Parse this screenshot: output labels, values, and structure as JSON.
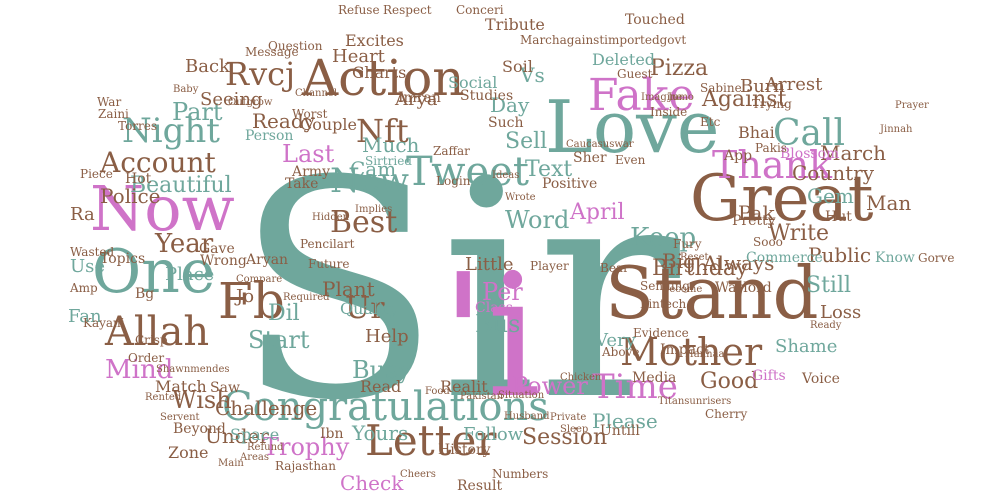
{
  "palette": {
    "teal": "#6fa79c",
    "brown": "#8a5e45",
    "pink": "#cf73c8",
    "sage": "#9cbfb5",
    "background": "#ffffff"
  },
  "words": [
    {
      "text": "Sir",
      "color": "teal"
    },
    {
      "text": "'i",
      "color": "pink"
    },
    {
      "text": "Love",
      "color": "teal"
    },
    {
      "text": "Great",
      "color": "brown"
    },
    {
      "text": "Stand",
      "color": "brown"
    },
    {
      "text": "Congratulations",
      "color": "teal"
    },
    {
      "text": "Now",
      "color": "pink"
    },
    {
      "text": "One",
      "color": "teal"
    },
    {
      "text": "Action",
      "color": "brown"
    },
    {
      "text": "Letter",
      "color": "brown"
    },
    {
      "text": "Fb",
      "color": "brown"
    },
    {
      "text": "Allah",
      "color": "brown"
    },
    {
      "text": "Mother",
      "color": "brown"
    },
    {
      "text": "Fake",
      "color": "pink"
    },
    {
      "text": "Tweet",
      "color": "teal"
    },
    {
      "text": "Thank",
      "color": "pink"
    },
    {
      "text": "Call",
      "color": "teal"
    },
    {
      "text": "Time",
      "color": "pink"
    },
    {
      "text": "Night",
      "color": "teal"
    },
    {
      "text": "Account",
      "color": "brown"
    },
    {
      "text": "Mind",
      "color": "pink"
    },
    {
      "text": "Nft",
      "color": "brown"
    },
    {
      "text": "New",
      "color": "teal"
    },
    {
      "text": "Rvcj",
      "color": "brown"
    },
    {
      "text": "Best",
      "color": "brown"
    },
    {
      "text": "Ur",
      "color": "brown"
    },
    {
      "text": "Busy",
      "color": "teal"
    },
    {
      "text": "Trophy",
      "color": "pink"
    },
    {
      "text": "Wish",
      "color": "brown"
    },
    {
      "text": "Part",
      "color": "teal"
    },
    {
      "text": "Year",
      "color": "brown"
    },
    {
      "text": "Beautiful",
      "color": "teal"
    },
    {
      "text": "Keep",
      "color": "teal"
    },
    {
      "text": "Birthday",
      "color": "brown"
    },
    {
      "text": "Power",
      "color": "pink"
    },
    {
      "text": "Against",
      "color": "brown"
    },
    {
      "text": "Pizza",
      "color": "brown"
    },
    {
      "text": "Country",
      "color": "brown"
    },
    {
      "text": "Public",
      "color": "brown"
    },
    {
      "text": "Word",
      "color": "teal"
    },
    {
      "text": "Bus",
      "color": "teal"
    },
    {
      "text": "Per",
      "color": "pink"
    },
    {
      "text": "Sell",
      "color": "teal"
    },
    {
      "text": "Last",
      "color": "pink"
    },
    {
      "text": "Police",
      "color": "brown"
    },
    {
      "text": "Ready",
      "color": "brown"
    },
    {
      "text": "Heart",
      "color": "brown"
    },
    {
      "text": "Start",
      "color": "teal"
    },
    {
      "text": "Session",
      "color": "brown"
    },
    {
      "text": "Please",
      "color": "teal"
    },
    {
      "text": "Check",
      "color": "pink"
    },
    {
      "text": "Yours",
      "color": "teal"
    },
    {
      "text": "Under",
      "color": "brown"
    },
    {
      "text": "March",
      "color": "brown"
    },
    {
      "text": "April",
      "color": "pink"
    },
    {
      "text": "Still",
      "color": "teal"
    },
    {
      "text": "Loss",
      "color": "brown"
    },
    {
      "text": "Gem",
      "color": "teal"
    },
    {
      "text": "Man",
      "color": "brown"
    },
    {
      "text": "Good",
      "color": "brown"
    },
    {
      "text": "Always",
      "color": "brown"
    },
    {
      "text": "Text",
      "color": "teal"
    },
    {
      "text": "Much",
      "color": "teal"
    },
    {
      "text": "Cam",
      "color": "teal"
    },
    {
      "text": "Day",
      "color": "teal"
    },
    {
      "text": "Vs",
      "color": "teal"
    },
    {
      "text": "Pak",
      "color": "brown"
    },
    {
      "text": "Big",
      "color": "brown"
    },
    {
      "text": "Write",
      "color": "brown"
    },
    {
      "text": "Little",
      "color": "brown"
    },
    {
      "text": "Very",
      "color": "teal"
    },
    {
      "text": "Follow",
      "color": "teal"
    },
    {
      "text": "Help",
      "color": "brown"
    },
    {
      "text": "Class",
      "color": "pink"
    },
    {
      "text": "Realit",
      "color": "brown"
    },
    {
      "text": "Dil",
      "color": "teal"
    },
    {
      "text": "Plant",
      "color": "brown"
    },
    {
      "text": "Quality",
      "color": "teal"
    },
    {
      "text": "Arya",
      "color": "brown"
    },
    {
      "text": "Charts",
      "color": "brown"
    },
    {
      "text": "Deleted",
      "color": "teal"
    },
    {
      "text": "Social",
      "color": "teal"
    },
    {
      "text": "Soil",
      "color": "brown"
    },
    {
      "text": "Tribute",
      "color": "brown"
    },
    {
      "text": "Burn",
      "color": "brown"
    },
    {
      "text": "Arrest",
      "color": "brown"
    },
    {
      "text": "Bhai",
      "color": "brown"
    },
    {
      "text": "Seeing",
      "color": "brown"
    },
    {
      "text": "Back",
      "color": "brown"
    },
    {
      "text": "Beyond",
      "color": "brown"
    },
    {
      "text": "Place",
      "color": "teal"
    },
    {
      "text": "Fan",
      "color": "teal"
    },
    {
      "text": "Use",
      "color": "teal"
    },
    {
      "text": "Topics",
      "color": "brown"
    },
    {
      "text": "Challenge",
      "color": "brown"
    },
    {
      "text": "Space",
      "color": "teal"
    },
    {
      "text": "Zone",
      "color": "brown"
    },
    {
      "text": "Match",
      "color": "brown"
    },
    {
      "text": "Read",
      "color": "brown"
    },
    {
      "text": "Result",
      "color": "brown"
    },
    {
      "text": "Media",
      "color": "brown"
    },
    {
      "text": "Gifts",
      "color": "pink"
    },
    {
      "text": "Shame",
      "color": "teal"
    },
    {
      "text": "Voice",
      "color": "brown"
    },
    {
      "text": "Impact",
      "color": "brown"
    },
    {
      "text": "Commerce",
      "color": "teal"
    },
    {
      "text": "Know",
      "color": "teal"
    },
    {
      "text": "Positive",
      "color": "brown"
    },
    {
      "text": "Studies",
      "color": "brown"
    },
    {
      "text": "Imran",
      "color": "brown"
    },
    {
      "text": "Couple",
      "color": "brown"
    },
    {
      "text": "Army",
      "color": "brown"
    },
    {
      "text": "Person",
      "color": "teal"
    },
    {
      "text": "Sirtried",
      "color": "teal"
    },
    {
      "text": "Zaffar",
      "color": "brown"
    },
    {
      "text": "Torres",
      "color": "brown"
    },
    {
      "text": "Piece",
      "color": "brown"
    },
    {
      "text": "Jo",
      "color": "brown"
    },
    {
      "text": "Excites",
      "color": "brown"
    },
    {
      "text": "Guest",
      "color": "brown"
    },
    {
      "text": "Sabine",
      "color": "brown"
    },
    {
      "text": "Pretty",
      "color": "brown"
    },
    {
      "text": "Sooo",
      "color": "brown"
    },
    {
      "text": "Blossom",
      "color": "pink"
    },
    {
      "text": "Future",
      "color": "brown"
    },
    {
      "text": "Saw",
      "color": "brown"
    },
    {
      "text": "Cherry",
      "color": "brown"
    },
    {
      "text": "Above",
      "color": "brown"
    },
    {
      "text": "Evidence",
      "color": "brown"
    },
    {
      "text": "History",
      "color": "brown"
    },
    {
      "text": "Untill",
      "color": "brown"
    },
    {
      "text": "Pakistan",
      "color": "brown"
    },
    {
      "text": "Ibn",
      "color": "brown"
    },
    {
      "text": "Ra",
      "color": "brown"
    },
    {
      "text": "Bg",
      "color": "brown"
    },
    {
      "text": "Hot",
      "color": "brown"
    },
    {
      "text": "Wasted",
      "color": "brown"
    },
    {
      "text": "Sher",
      "color": "brown"
    },
    {
      "text": "Even",
      "color": "brown"
    },
    {
      "text": "Such",
      "color": "brown"
    },
    {
      "text": "Fury",
      "color": "brown"
    },
    {
      "text": "Warlord",
      "color": "brown"
    },
    {
      "text": "Bear",
      "color": "brown"
    },
    {
      "text": "Imagine",
      "color": "brown"
    },
    {
      "text": "Jumo",
      "color": "brown"
    },
    {
      "text": "Touched",
      "color": "brown"
    },
    {
      "text": "Refuse",
      "color": "brown"
    },
    {
      "text": "Respect",
      "color": "brown"
    },
    {
      "text": "Conceri",
      "color": "brown"
    },
    {
      "text": "Trying",
      "color": "brown"
    },
    {
      "text": "Hut",
      "color": "brown"
    },
    {
      "text": "Jinnah",
      "color": "brown"
    },
    {
      "text": "Gorve",
      "color": "brown"
    },
    {
      "text": "Marchagainstimportedgovt",
      "color": "brown"
    },
    {
      "text": "Pencilart",
      "color": "brown"
    },
    {
      "text": "Baby",
      "color": "brown"
    },
    {
      "text": "War",
      "color": "brown"
    },
    {
      "text": "Zaini",
      "color": "brown"
    },
    {
      "text": "Kayani",
      "color": "brown"
    },
    {
      "text": "Amp",
      "color": "brown"
    },
    {
      "text": "Crisp",
      "color": "brown"
    },
    {
      "text": "Order",
      "color": "brown"
    },
    {
      "text": "Shawnmendes",
      "color": "brown"
    },
    {
      "text": "Rajasthan",
      "color": "brown"
    },
    {
      "text": "Numbers",
      "color": "brown"
    },
    {
      "text": "Cheers",
      "color": "brown"
    },
    {
      "text": "Titansunrisers",
      "color": "brown"
    },
    {
      "text": "Situation",
      "color": "brown"
    },
    {
      "text": "Food",
      "color": "brown"
    },
    {
      "text": "Login",
      "color": "brown"
    },
    {
      "text": "Wrote",
      "color": "brown"
    },
    {
      "text": "Ideas",
      "color": "brown"
    },
    {
      "text": "Player",
      "color": "brown"
    },
    {
      "text": "Aryan",
      "color": "brown"
    },
    {
      "text": "Gave",
      "color": "brown"
    },
    {
      "text": "Wrong",
      "color": "brown"
    },
    {
      "text": "Take",
      "color": "brown"
    },
    {
      "text": "Worst",
      "color": "brown"
    },
    {
      "text": "Channel",
      "color": "brown"
    },
    {
      "text": "Question",
      "color": "brown"
    },
    {
      "text": "Message",
      "color": "brown"
    },
    {
      "text": "Outgrow",
      "color": "brown"
    },
    {
      "text": "Inside",
      "color": "brown"
    },
    {
      "text": "App",
      "color": "brown"
    },
    {
      "text": "Prayer",
      "color": "brown"
    },
    {
      "text": "Pakis",
      "color": "brown"
    },
    {
      "text": "Etc",
      "color": "brown"
    },
    {
      "text": "Fintech",
      "color": "brown"
    },
    {
      "text": "Sending",
      "color": "brown"
    },
    {
      "text": "Become",
      "color": "brown"
    },
    {
      "text": "Hanhaa",
      "color": "brown"
    },
    {
      "text": "Private",
      "color": "brown"
    },
    {
      "text": "Sleep",
      "color": "brown"
    },
    {
      "text": "Husband",
      "color": "brown"
    },
    {
      "text": "Areas",
      "color": "brown"
    },
    {
      "text": "Main",
      "color": "brown"
    },
    {
      "text": "Refund",
      "color": "brown"
    },
    {
      "text": "Servent",
      "color": "brown"
    },
    {
      "text": "Rented",
      "color": "brown"
    },
    {
      "text": "Reset",
      "color": "brown"
    },
    {
      "text": "Chicken",
      "color": "brown"
    },
    {
      "text": "Caucasuswar",
      "color": "brown"
    },
    {
      "text": "Compare",
      "color": "brown"
    },
    {
      "text": "Required",
      "color": "brown"
    },
    {
      "text": "Implies",
      "color": "brown"
    },
    {
      "text": "Hidden",
      "color": "brown"
    },
    {
      "text": "Ready",
      "color": "brown"
    }
  ]
}
